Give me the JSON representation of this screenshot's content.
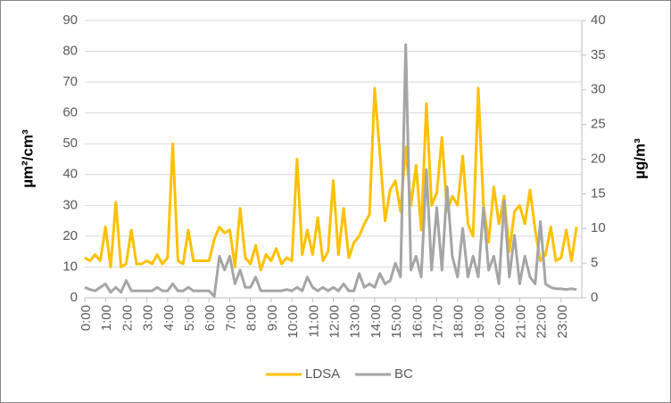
{
  "chart_data": {
    "type": "line",
    "x": [
      0,
      0.25,
      0.5,
      0.75,
      1,
      1.25,
      1.5,
      1.75,
      2,
      2.25,
      2.5,
      2.75,
      3,
      3.25,
      3.5,
      3.75,
      4,
      4.25,
      4.5,
      4.75,
      5,
      5.25,
      5.5,
      5.75,
      6,
      6.25,
      6.5,
      6.75,
      7,
      7.25,
      7.5,
      7.75,
      8,
      8.25,
      8.5,
      8.75,
      9,
      9.25,
      9.5,
      9.75,
      10,
      10.25,
      10.5,
      10.75,
      11,
      11.25,
      11.5,
      11.75,
      12,
      12.25,
      12.5,
      12.75,
      13,
      13.25,
      13.5,
      13.75,
      14,
      14.25,
      14.5,
      14.75,
      15,
      15.25,
      15.5,
      15.75,
      16,
      16.25,
      16.5,
      16.75,
      17,
      17.25,
      17.5,
      17.75,
      18,
      18.25,
      18.5,
      18.75,
      19,
      19.25,
      19.5,
      19.75,
      20,
      20.25,
      20.5,
      20.75,
      21,
      21.25,
      21.5,
      21.75,
      22,
      22.25,
      22.5,
      22.75,
      23,
      23.25,
      23.5,
      23.75
    ],
    "series": [
      {
        "name": "LDSA",
        "color": "#ffc000",
        "axis": "y",
        "values": [
          13,
          12,
          14,
          12,
          23,
          10,
          31,
          10,
          11,
          22,
          11,
          11,
          12,
          11,
          14,
          11,
          13,
          50,
          12,
          11,
          22,
          12,
          12,
          12,
          12,
          19,
          23,
          21,
          22,
          10,
          29,
          13,
          11,
          17,
          9,
          14,
          12,
          16,
          11,
          13,
          12,
          45,
          14,
          22,
          14,
          26,
          12,
          15,
          38,
          14,
          29,
          13,
          18,
          20,
          24,
          27,
          68,
          47,
          25,
          35,
          38,
          28,
          49,
          30,
          43,
          22,
          63,
          30,
          34,
          52,
          28,
          33,
          30,
          46,
          24,
          20,
          68,
          30,
          18,
          36,
          24,
          33,
          15,
          28,
          30,
          24,
          35,
          22,
          12,
          14,
          23,
          12,
          13,
          22,
          12,
          23
        ]
      },
      {
        "name": "BC",
        "color": "#a5a5a5",
        "axis": "y2",
        "values": [
          1.5,
          1.2,
          1,
          1.5,
          2,
          0.8,
          1.5,
          0.8,
          2.5,
          1,
          1,
          1,
          1,
          1,
          1.5,
          1,
          1,
          2,
          1,
          1,
          1.5,
          1,
          1,
          1,
          1,
          0.2,
          6,
          4,
          6,
          2,
          4,
          1.5,
          1.5,
          3,
          1,
          1,
          1,
          1,
          1,
          1.2,
          1,
          1.5,
          1,
          3,
          1.5,
          1,
          1.5,
          1,
          1.5,
          1,
          2,
          1,
          1,
          3.5,
          1.5,
          2,
          1.5,
          3.5,
          2,
          2.5,
          5,
          3,
          36.5,
          4,
          6,
          3,
          18.5,
          4,
          13,
          4,
          16,
          6,
          3,
          10,
          3,
          6,
          3,
          13,
          4,
          6,
          2,
          14,
          3,
          9,
          2,
          6,
          3,
          2,
          11,
          2,
          1.5,
          1.3,
          1.3,
          1.2,
          1.3,
          1.2
        ]
      }
    ],
    "y_label": "µm²/cm³",
    "y2_label": "µg/m³",
    "xlim": [
      0,
      24
    ],
    "xticks": [
      {
        "value": 0,
        "label": "0:00"
      },
      {
        "value": 1,
        "label": "1:00"
      },
      {
        "value": 2,
        "label": "2:00"
      },
      {
        "value": 3,
        "label": "3:00"
      },
      {
        "value": 4,
        "label": "4:00"
      },
      {
        "value": 5,
        "label": "5:00"
      },
      {
        "value": 6,
        "label": "6:00"
      },
      {
        "value": 7,
        "label": "7:00"
      },
      {
        "value": 8,
        "label": "8:00"
      },
      {
        "value": 9,
        "label": "9:00"
      },
      {
        "value": 10,
        "label": "10:00"
      },
      {
        "value": 11,
        "label": "11:00"
      },
      {
        "value": 12,
        "label": "12:00"
      },
      {
        "value": 13,
        "label": "13:00"
      },
      {
        "value": 14,
        "label": "14:00"
      },
      {
        "value": 15,
        "label": "15:00"
      },
      {
        "value": 16,
        "label": "16:00"
      },
      {
        "value": 17,
        "label": "17:00"
      },
      {
        "value": 18,
        "label": "18:00"
      },
      {
        "value": 19,
        "label": "19:00"
      },
      {
        "value": 20,
        "label": "20:00"
      },
      {
        "value": 21,
        "label": "21:00"
      },
      {
        "value": 22,
        "label": "22:00"
      },
      {
        "value": 23,
        "label": "23:00"
      }
    ],
    "ylim": [
      0,
      90
    ],
    "yticks": [
      0,
      10,
      20,
      30,
      40,
      50,
      60,
      70,
      80,
      90
    ],
    "y2lim": [
      0,
      40
    ],
    "y2ticks": [
      0,
      5,
      10,
      15,
      20,
      25,
      30,
      35,
      40
    ],
    "grid": true,
    "legend": "bottom"
  }
}
